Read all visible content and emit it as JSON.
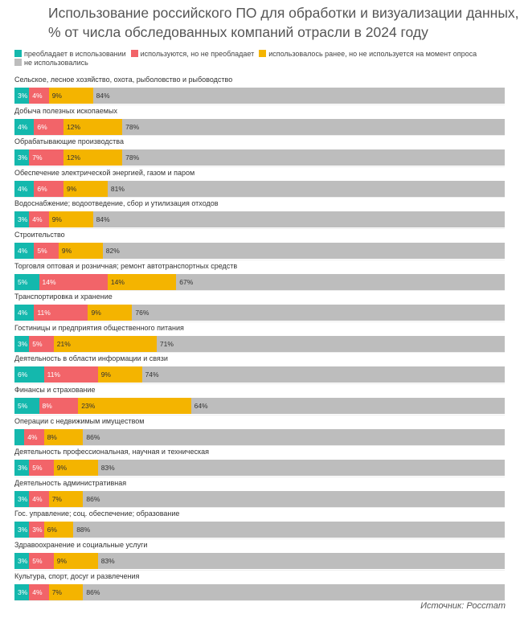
{
  "chart_data": {
    "type": "bar",
    "orientation": "horizontal",
    "stacked": true,
    "title": "Использование российского ПО для обработки и визуализации данных, % от числа обследованных компаний отрасли в 2024 году",
    "legend_position": "top",
    "series": [
      {
        "name": "преобладает в использовании",
        "color": "#14b8ad",
        "text_color": "#fff"
      },
      {
        "name": "используются, но не преобладает",
        "color": "#f26469",
        "text_color": "#fff"
      },
      {
        "name": "использовалось ранее, но не используется на момент опроса",
        "color": "#f4b400",
        "text_color": "#333"
      },
      {
        "name": "не использовались",
        "color": "#bdbdbd",
        "text_color": "#333"
      }
    ],
    "categories": [
      {
        "label": "Сельское, лесное хозяйство, охота, рыболовство и рыбоводство",
        "values": [
          3,
          4,
          9,
          84
        ]
      },
      {
        "label": "Добыча полезных ископаемых",
        "values": [
          4,
          6,
          12,
          78
        ]
      },
      {
        "label": "Обрабатывающие производства",
        "values": [
          3,
          7,
          12,
          78
        ]
      },
      {
        "label": "Обеспечение электрической энергией, газом и паром",
        "values": [
          4,
          6,
          9,
          81
        ]
      },
      {
        "label": "Водоснабжение; водоотведение, сбор и утилизация отходов",
        "values": [
          3,
          4,
          9,
          84
        ]
      },
      {
        "label": "Строительство",
        "values": [
          4,
          5,
          9,
          82
        ]
      },
      {
        "label": "Торговля оптовая и розничная; ремонт автотранспортных средств",
        "values": [
          5,
          14,
          14,
          67
        ]
      },
      {
        "label": "Транспортировка и хранение",
        "values": [
          4,
          11,
          9,
          76
        ]
      },
      {
        "label": "Гостиницы и предприятия общественного питания",
        "values": [
          3,
          5,
          21,
          71
        ]
      },
      {
        "label": "Деятельность в области информации и связи",
        "values": [
          6,
          11,
          9,
          74
        ]
      },
      {
        "label": "Финансы и страхование",
        "values": [
          5,
          8,
          23,
          64
        ]
      },
      {
        "label": "Операции с недвижимым имуществом",
        "values": [
          2,
          4,
          8,
          86
        ],
        "hidden_labels": [
          0
        ]
      },
      {
        "label": "Деятельность профессиональная, научная и техническая",
        "values": [
          3,
          5,
          9,
          83
        ]
      },
      {
        "label": "Деятельность административная",
        "values": [
          3,
          4,
          7,
          86
        ]
      },
      {
        "label": "Гос. управление; соц. обеспечение; образование",
        "values": [
          3,
          3,
          6,
          88
        ]
      },
      {
        "label": "Здравоохранение и социальные услуги",
        "values": [
          3,
          5,
          9,
          83
        ]
      },
      {
        "label": "Культура, спорт, досуг и развлечения",
        "values": [
          3,
          4,
          7,
          86
        ]
      }
    ]
  },
  "source": "Источник: Росстат"
}
